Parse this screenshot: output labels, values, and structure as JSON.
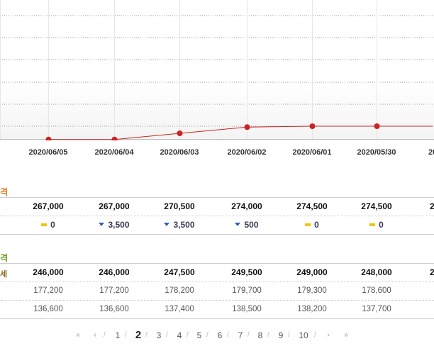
{
  "chart_data": {
    "type": "line",
    "x": [
      "2020/06/05",
      "2020/06/04",
      "2020/06/03",
      "2020/06/02",
      "2020/06/01",
      "2020/05/30",
      "20"
    ],
    "series": [
      {
        "values": [
          267000,
          267000,
          270500,
          274000,
          274500,
          274500,
          274500
        ],
        "color": "#cc2222"
      }
    ],
    "grid": true
  },
  "sections": {
    "price_title": "격",
    "price_title_color": "#e0781e",
    "prices": [
      "267,000",
      "267,000",
      "270,500",
      "274,000",
      "274,500",
      "274,500",
      "2"
    ],
    "changes": [
      {
        "dir": "flat",
        "value": "0"
      },
      {
        "dir": "down",
        "value": "3,500"
      },
      {
        "dir": "down",
        "value": "3,500"
      },
      {
        "dir": "down",
        "value": "500"
      },
      {
        "dir": "flat",
        "value": "0"
      },
      {
        "dir": "flat",
        "value": "0"
      }
    ],
    "second_title": "격",
    "second_title_color": "#6a9a1e",
    "row_a_lead": "세",
    "row_a": [
      "246,000",
      "246,000",
      "247,500",
      "249,500",
      "249,000",
      "248,000",
      "2"
    ],
    "row_b": [
      "177,200",
      "177,200",
      "178,200",
      "179,700",
      "179,300",
      "178,600"
    ],
    "row_c": [
      "136,600",
      "136,600",
      "137,400",
      "138,500",
      "138,200",
      "137,700"
    ]
  },
  "pager": {
    "first": "«",
    "prev": "‹",
    "pages": [
      "1",
      "2",
      "3",
      "4",
      "5",
      "6",
      "7",
      "8",
      "9",
      "10"
    ],
    "current": "2",
    "next": "›",
    "last": "»",
    "separator": "/"
  }
}
